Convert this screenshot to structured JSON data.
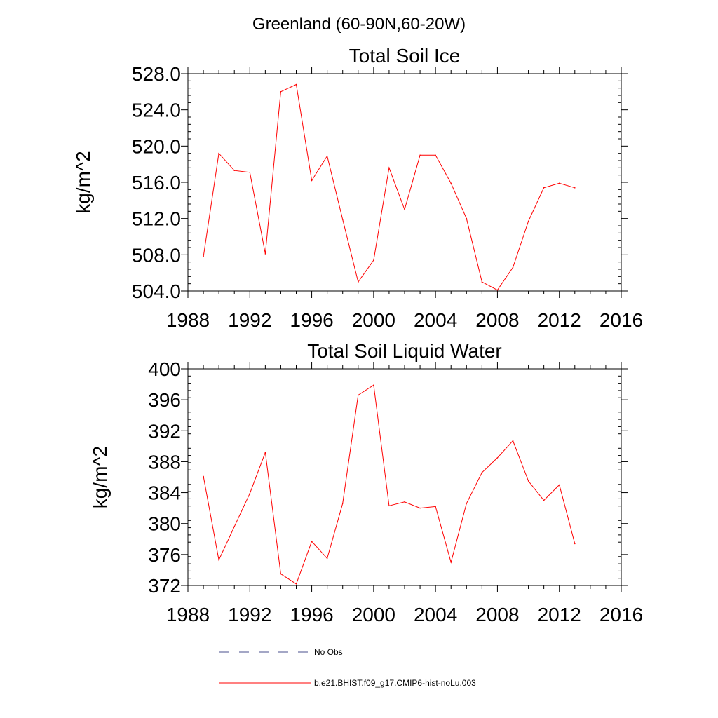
{
  "suptitle": "Greenland (60-90N,60-20W)",
  "colors": {
    "model_line": "#ff0000",
    "obs_line": "#4a4f8c",
    "axes": "#000000"
  },
  "legend": {
    "obs_label": "No Obs",
    "model_label": "b.e21.BHIST.f09_g17.CMIP6-hist-noLu.003"
  },
  "chart_data": [
    {
      "type": "line",
      "title": "Total Soil Ice",
      "xlabel": "",
      "ylabel": "kg/m^2",
      "xlim": [
        1988,
        2016
      ],
      "ylim": [
        504,
        528
      ],
      "x_ticks": [
        "1988",
        "1992",
        "1996",
        "2000",
        "2004",
        "2008",
        "2012",
        "2016"
      ],
      "y_ticks": [
        "504.0",
        "508.0",
        "512.0",
        "516.0",
        "520.0",
        "524.0",
        "528.0"
      ],
      "grid": false,
      "x": [
        1989,
        1990,
        1991,
        1992,
        1993,
        1994,
        1995,
        1996,
        1997,
        1998,
        1999,
        2000,
        2001,
        2002,
        2003,
        2004,
        2005,
        2006,
        2007,
        2008,
        2009,
        2010,
        2011,
        2012,
        2013
      ],
      "series": [
        {
          "name": "b.e21.BHIST.f09_g17.CMIP6-hist-noLu.003",
          "values": [
            507.8,
            519.2,
            517.3,
            517.1,
            508.1,
            526.0,
            526.8,
            516.2,
            518.9,
            511.9,
            505.0,
            507.4,
            517.6,
            513.0,
            519.0,
            519.0,
            515.9,
            512.0,
            505.0,
            504.1,
            506.6,
            511.7,
            515.4,
            515.9,
            515.4
          ]
        }
      ]
    },
    {
      "type": "line",
      "title": "Total Soil Liquid Water",
      "xlabel": "",
      "ylabel": "kg/m^2",
      "xlim": [
        1988,
        2016
      ],
      "ylim": [
        372,
        400
      ],
      "x_ticks": [
        "1988",
        "1992",
        "1996",
        "2000",
        "2004",
        "2008",
        "2012",
        "2016"
      ],
      "y_ticks": [
        "372",
        "376",
        "380",
        "384",
        "388",
        "392",
        "396",
        "400"
      ],
      "grid": false,
      "x": [
        1989,
        1990,
        1991,
        1992,
        1993,
        1994,
        1995,
        1996,
        1997,
        1998,
        1999,
        2000,
        2001,
        2002,
        2003,
        2004,
        2005,
        2006,
        2007,
        2008,
        2009,
        2010,
        2011,
        2012,
        2013
      ],
      "series": [
        {
          "name": "b.e21.BHIST.f09_g17.CMIP6-hist-noLu.003",
          "values": [
            386.1,
            375.3,
            379.6,
            383.9,
            389.2,
            373.5,
            372.2,
            377.7,
            375.5,
            382.6,
            396.6,
            397.9,
            382.3,
            382.8,
            382.0,
            382.2,
            375.0,
            382.6,
            386.6,
            388.5,
            390.7,
            385.5,
            383.0,
            385.0,
            377.4
          ]
        }
      ]
    }
  ]
}
